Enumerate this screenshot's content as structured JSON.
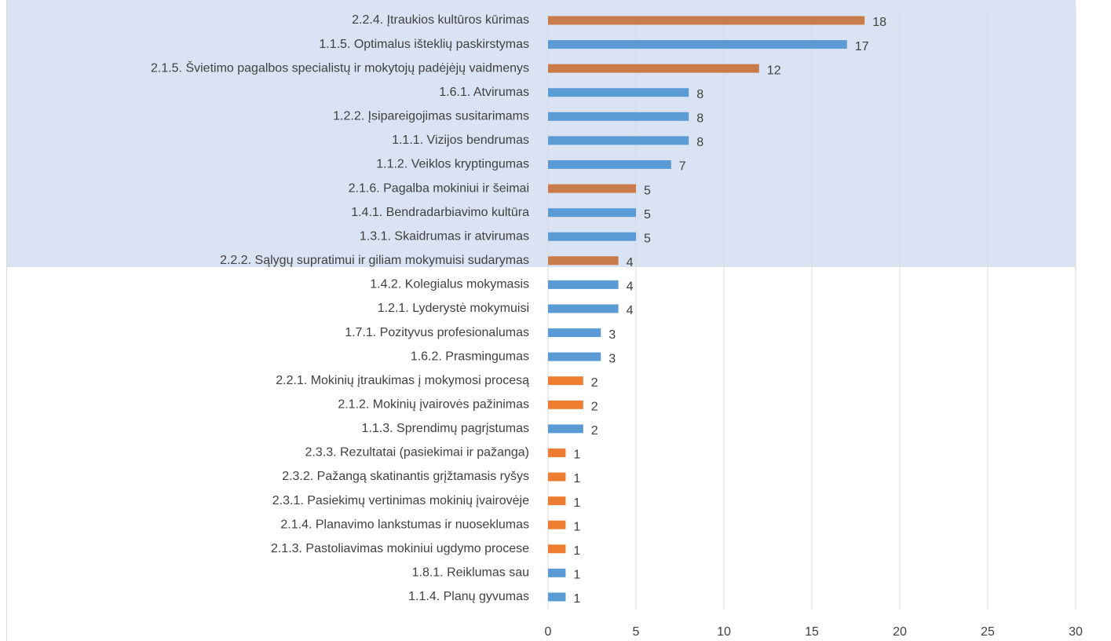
{
  "chart_data": {
    "type": "bar",
    "orientation": "horizontal",
    "categories": [
      "2.2.4. Įtraukios kultūros kūrimas",
      "1.1.5. Optimalus išteklių paskirstymas",
      "2.1.5. Švietimo pagalbos specialistų ir mokytojų padėjėjų vaidmenys",
      "1.6.1. Atvirumas",
      "1.2.2. Įsipareigojimas susitarimams",
      "1.1.1. Vizijos bendrumas",
      "1.1.2. Veiklos kryptingumas",
      "2.1.6. Pagalba mokiniui ir šeimai",
      "1.4.1. Bendradarbiavimo kultūra",
      "1.3.1. Skaidrumas ir atvirumas",
      "2.2.2. Sąlygų supratimui ir giliam mokymuisi sudarymas",
      "1.4.2. Kolegialus mokymasis",
      "1.2.1. Lyderystė mokymuisi",
      "1.7.1. Pozityvus profesionalumas",
      "1.6.2. Prasmingumas",
      "2.2.1. Mokinių įtraukimas į mokymosi procesą",
      "2.1.2. Mokinių įvairovės pažinimas",
      "1.1.3. Sprendimų pagrįstumas",
      "2.3.3. Rezultatai (pasiekimai ir pažanga)",
      "2.3.2. Pažangą skatinantis grįžtamasis ryšys",
      "2.3.1. Pasiekimų vertinimas mokinių įvairovėje",
      "2.1.4. Planavimo lankstumas ir nuoseklumas",
      "2.1.3. Pastoliavimas mokiniui ugdymo procese",
      "1.8.1. Reiklumas sau",
      "1.1.4. Planų gyvumas"
    ],
    "values": [
      18,
      17,
      12,
      8,
      8,
      8,
      7,
      5,
      5,
      5,
      4,
      4,
      4,
      3,
      3,
      2,
      2,
      2,
      1,
      1,
      1,
      1,
      1,
      1,
      1
    ],
    "colors": [
      "#c97c4a",
      "#5b9bd5",
      "#c97c4a",
      "#5b9bd5",
      "#5b9bd5",
      "#5b9bd5",
      "#5b9bd5",
      "#c97c4a",
      "#5b9bd5",
      "#5b9bd5",
      "#c97c4a",
      "#5b9bd5",
      "#5b9bd5",
      "#5b9bd5",
      "#5b9bd5",
      "#ed7d31",
      "#ed7d31",
      "#5b9bd5",
      "#ed7d31",
      "#ed7d31",
      "#ed7d31",
      "#ed7d31",
      "#ed7d31",
      "#5b9bd5",
      "#5b9bd5"
    ],
    "xlim": [
      0,
      30
    ],
    "xticks": [
      0,
      5,
      10,
      15,
      20,
      25,
      30
    ],
    "grid": true
  }
}
